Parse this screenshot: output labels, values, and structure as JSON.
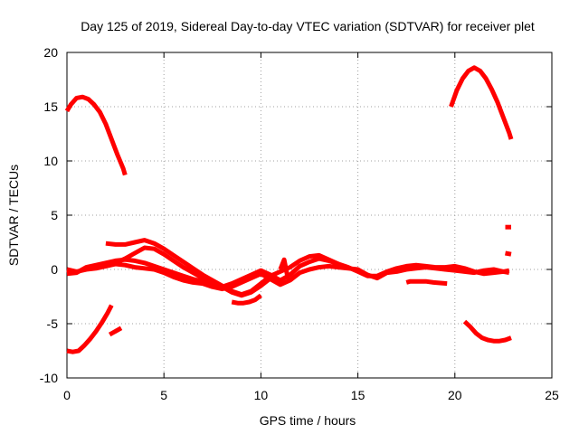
{
  "chart_data": {
    "type": "scatter",
    "title": "Day 125 of 2019, Sidereal Day-to-day VTEC variation (SDTVAR) for receiver plet",
    "xlabel": "GPS time / hours",
    "ylabel": "SDTVAR / TECUs",
    "xlim": [
      0,
      25
    ],
    "ylim": [
      -10,
      20
    ],
    "xticks": [
      0,
      5,
      10,
      15,
      20,
      25
    ],
    "yticks": [
      -10,
      -5,
      0,
      5,
      10,
      15,
      20
    ],
    "xtick_labels": [
      "0",
      "5",
      "10",
      "15",
      "20",
      "25"
    ],
    "ytick_labels": [
      "-10",
      "-5",
      "0",
      "5",
      "10",
      "15",
      "20"
    ],
    "grid": true,
    "legend": "none",
    "color": "#ff0000",
    "series": [
      {
        "name": "arc-high-start",
        "x": [
          0.0,
          0.2,
          0.5,
          0.8,
          1.1,
          1.4,
          1.7,
          2.0,
          2.3,
          2.6,
          2.9,
          3.0
        ],
        "y": [
          14.6,
          15.2,
          15.8,
          15.9,
          15.7,
          15.2,
          14.5,
          13.4,
          12.0,
          10.6,
          9.3,
          8.7
        ]
      },
      {
        "name": "arc-high-end",
        "x": [
          19.8,
          20.1,
          20.4,
          20.7,
          21.0,
          21.3,
          21.6,
          21.9,
          22.2,
          22.5,
          22.8,
          22.9
        ],
        "y": [
          15.0,
          16.5,
          17.6,
          18.3,
          18.6,
          18.3,
          17.6,
          16.6,
          15.4,
          14.0,
          12.6,
          12.0
        ]
      },
      {
        "name": "arc-low-start",
        "x": [
          0.0,
          0.3,
          0.6,
          0.9,
          1.2,
          1.5,
          1.8,
          2.1,
          2.3
        ],
        "y": [
          -7.5,
          -7.6,
          -7.5,
          -7.0,
          -6.4,
          -5.7,
          -4.9,
          -4.0,
          -3.3
        ]
      },
      {
        "name": "arc-low-start-b",
        "x": [
          2.2,
          2.5,
          2.8
        ],
        "y": [
          -6.0,
          -5.7,
          -5.4
        ]
      },
      {
        "name": "arc-low-end",
        "x": [
          20.5,
          20.8,
          21.1,
          21.4,
          21.7,
          22.0,
          22.3,
          22.6,
          22.9
        ],
        "y": [
          -4.8,
          -5.3,
          -5.9,
          -6.3,
          -6.5,
          -6.6,
          -6.6,
          -6.5,
          -6.3
        ]
      },
      {
        "name": "baseline-a",
        "x": [
          0.0,
          0.5,
          1.0,
          1.5,
          2.0,
          2.5,
          3.0,
          3.5,
          4.0,
          4.5,
          5.0,
          5.5,
          6.0,
          6.5,
          7.0,
          7.5,
          8.0,
          8.5,
          9.0,
          9.5,
          10.0,
          10.5,
          11.0,
          11.5,
          12.0,
          12.5,
          13.0,
          13.5,
          14.0,
          14.5,
          15.0,
          15.5,
          16.0,
          16.5,
          17.0,
          17.5,
          18.0,
          18.5,
          19.0,
          19.5,
          20.0,
          20.5,
          21.0,
          21.5,
          22.0,
          22.5,
          22.8
        ],
        "y": [
          0.0,
          -0.2,
          0.0,
          0.1,
          0.3,
          0.5,
          0.4,
          0.2,
          0.1,
          0.0,
          -0.3,
          -0.7,
          -1.0,
          -1.2,
          -1.3,
          -1.6,
          -1.8,
          -1.6,
          -1.2,
          -0.8,
          -0.4,
          -0.9,
          -1.4,
          -1.0,
          -0.3,
          0.0,
          0.2,
          0.3,
          0.2,
          0.1,
          0.0,
          -0.5,
          -0.8,
          -0.3,
          -0.2,
          0.0,
          0.1,
          0.2,
          0.1,
          0.0,
          -0.1,
          -0.2,
          -0.3,
          -0.1,
          0.0,
          -0.2,
          -0.3
        ]
      },
      {
        "name": "baseline-b",
        "x": [
          0.0,
          0.5,
          1.0,
          1.5,
          2.0,
          2.5,
          3.0,
          3.5,
          4.0,
          4.5,
          5.0,
          5.5,
          6.0,
          6.5,
          7.0,
          7.5,
          8.0,
          8.5,
          9.0,
          9.5,
          10.0,
          10.5,
          11.0,
          11.5,
          12.0,
          12.5,
          13.0,
          13.5,
          14.0,
          14.5,
          15.0,
          15.5,
          16.0,
          16.5,
          17.0,
          17.5,
          18.0,
          18.5,
          19.0,
          19.5,
          20.0,
          20.5,
          21.0,
          21.5,
          22.0,
          22.5,
          22.8
        ],
        "y": [
          -0.4,
          -0.3,
          0.2,
          0.4,
          0.6,
          0.8,
          0.9,
          0.8,
          0.6,
          0.3,
          0.0,
          -0.3,
          -0.6,
          -0.9,
          -1.1,
          -1.4,
          -1.6,
          -1.3,
          -0.9,
          -0.5,
          -0.1,
          -0.5,
          -1.0,
          -0.5,
          0.3,
          0.7,
          1.0,
          0.8,
          0.5,
          0.2,
          -0.2,
          -0.6,
          -0.6,
          -0.2,
          0.1,
          0.3,
          0.4,
          0.3,
          0.2,
          0.2,
          0.3,
          0.1,
          -0.2,
          -0.4,
          -0.3,
          -0.2,
          -0.1
        ]
      },
      {
        "name": "bump-upper",
        "x": [
          2.0,
          2.5,
          3.0,
          3.5,
          4.0,
          4.5,
          5.0,
          5.5,
          6.0,
          6.5,
          7.0,
          7.5,
          8.0,
          8.5,
          9.0,
          9.5,
          10.0,
          10.5,
          11.0,
          11.5,
          12.0,
          12.5,
          13.0,
          13.5,
          14.0
        ],
        "y": [
          2.4,
          2.3,
          2.3,
          2.5,
          2.7,
          2.4,
          1.9,
          1.3,
          0.7,
          0.1,
          -0.5,
          -1.0,
          -1.5,
          -2.0,
          -2.3,
          -2.0,
          -1.3,
          -0.6,
          -0.2,
          0.2,
          0.8,
          1.2,
          1.3,
          0.9,
          0.5
        ]
      },
      {
        "name": "bump-lower",
        "x": [
          2.0,
          2.5,
          3.0,
          3.5,
          4.0,
          4.5,
          5.0,
          5.5,
          6.0,
          6.5,
          7.0,
          7.5,
          8.0,
          8.5,
          9.0,
          9.5,
          10.0,
          10.5
        ],
        "y": [
          0.3,
          0.6,
          1.0,
          1.5,
          2.0,
          1.9,
          1.4,
          0.8,
          0.2,
          -0.3,
          -0.8,
          -1.2,
          -1.6,
          -2.1,
          -2.4,
          -2.1,
          -1.5,
          -0.8
        ]
      },
      {
        "name": "dip-segment",
        "x": [
          8.5,
          8.8,
          9.1,
          9.4,
          9.7,
          10.0
        ],
        "y": [
          -3.0,
          -3.1,
          -3.1,
          -3.0,
          -2.8,
          -2.4
        ]
      },
      {
        "name": "spike-segment",
        "x": [
          11.0,
          11.2,
          11.4
        ],
        "y": [
          0.0,
          0.9,
          -0.9
        ]
      },
      {
        "name": "tail-segment",
        "x": [
          17.5,
          17.7,
          18.5,
          18.9,
          19.6
        ],
        "y": [
          -1.2,
          -1.1,
          -1.1,
          -1.2,
          -1.3
        ]
      },
      {
        "name": "end-marker-high",
        "x": [
          22.6,
          22.9
        ],
        "y": [
          3.9,
          3.9
        ]
      },
      {
        "name": "end-marker-low",
        "x": [
          22.6,
          22.9
        ],
        "y": [
          1.5,
          1.4
        ]
      }
    ]
  }
}
